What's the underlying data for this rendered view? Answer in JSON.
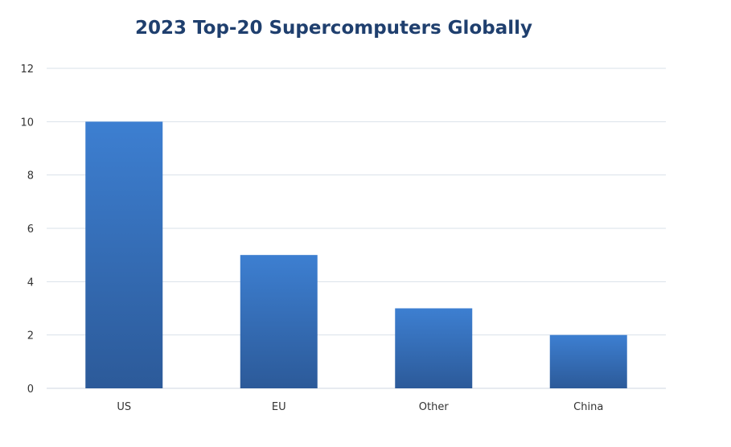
{
  "chart_data": {
    "type": "bar",
    "title": "2023 Top-20 Supercomputers Globally",
    "categories": [
      "US",
      "EU",
      "Other",
      "China"
    ],
    "values": [
      10,
      5,
      3,
      2
    ],
    "ylim": [
      0,
      12
    ],
    "yticks": [
      0,
      2,
      4,
      6,
      8,
      10,
      12
    ],
    "xlabel": "",
    "ylabel": "",
    "grid": true,
    "legend": "none",
    "bar_color_top": "#3d7fd1",
    "bar_color_bottom": "#2c5a99"
  }
}
